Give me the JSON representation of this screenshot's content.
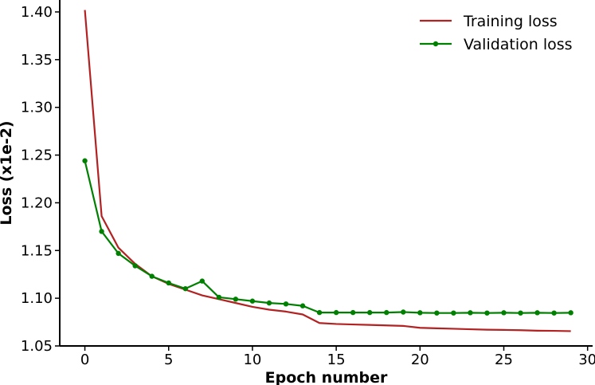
{
  "chart_data": {
    "type": "line",
    "title": "",
    "xlabel": "Epoch number",
    "ylabel": "Loss (x1e-2)",
    "xlim": [
      -1.5,
      30.3
    ],
    "ylim": [
      1.05,
      1.4125
    ],
    "xticks": [
      0,
      5,
      10,
      15,
      20,
      25,
      30
    ],
    "yticks": [
      1.05,
      1.1,
      1.15,
      1.2,
      1.25,
      1.3,
      1.35,
      1.4
    ],
    "xtick_labels": [
      "0",
      "5",
      "10",
      "15",
      "20",
      "25",
      "30"
    ],
    "ytick_labels": [
      "1.05",
      "1.10",
      "1.15",
      "1.20",
      "1.25",
      "1.30",
      "1.35",
      "1.40"
    ],
    "grid": false,
    "legend_position": "top-right",
    "x": [
      0,
      1,
      2,
      3,
      4,
      5,
      6,
      7,
      8,
      9,
      10,
      11,
      12,
      13,
      14,
      15,
      16,
      17,
      18,
      19,
      20,
      21,
      22,
      23,
      24,
      25,
      26,
      27,
      28,
      29
    ],
    "series": [
      {
        "name": "Training loss",
        "color": "#b22222",
        "marker": "none",
        "values": [
          1.402,
          1.186,
          1.153,
          1.136,
          1.123,
          1.115,
          1.109,
          1.103,
          1.099,
          1.095,
          1.091,
          1.088,
          1.086,
          1.083,
          1.074,
          1.073,
          1.0725,
          1.072,
          1.0715,
          1.071,
          1.069,
          1.0685,
          1.068,
          1.0675,
          1.067,
          1.0668,
          1.0665,
          1.066,
          1.0658,
          1.0655
        ]
      },
      {
        "name": "Validation loss",
        "color": "#008000",
        "marker": "circle",
        "values": [
          1.244,
          1.17,
          1.147,
          1.134,
          1.123,
          1.116,
          1.11,
          1.118,
          1.101,
          1.099,
          1.097,
          1.095,
          1.094,
          1.092,
          1.085,
          1.085,
          1.085,
          1.085,
          1.085,
          1.0855,
          1.0848,
          1.0845,
          1.0845,
          1.0848,
          1.0845,
          1.0848,
          1.0845,
          1.0848,
          1.0845,
          1.0848
        ]
      }
    ]
  }
}
